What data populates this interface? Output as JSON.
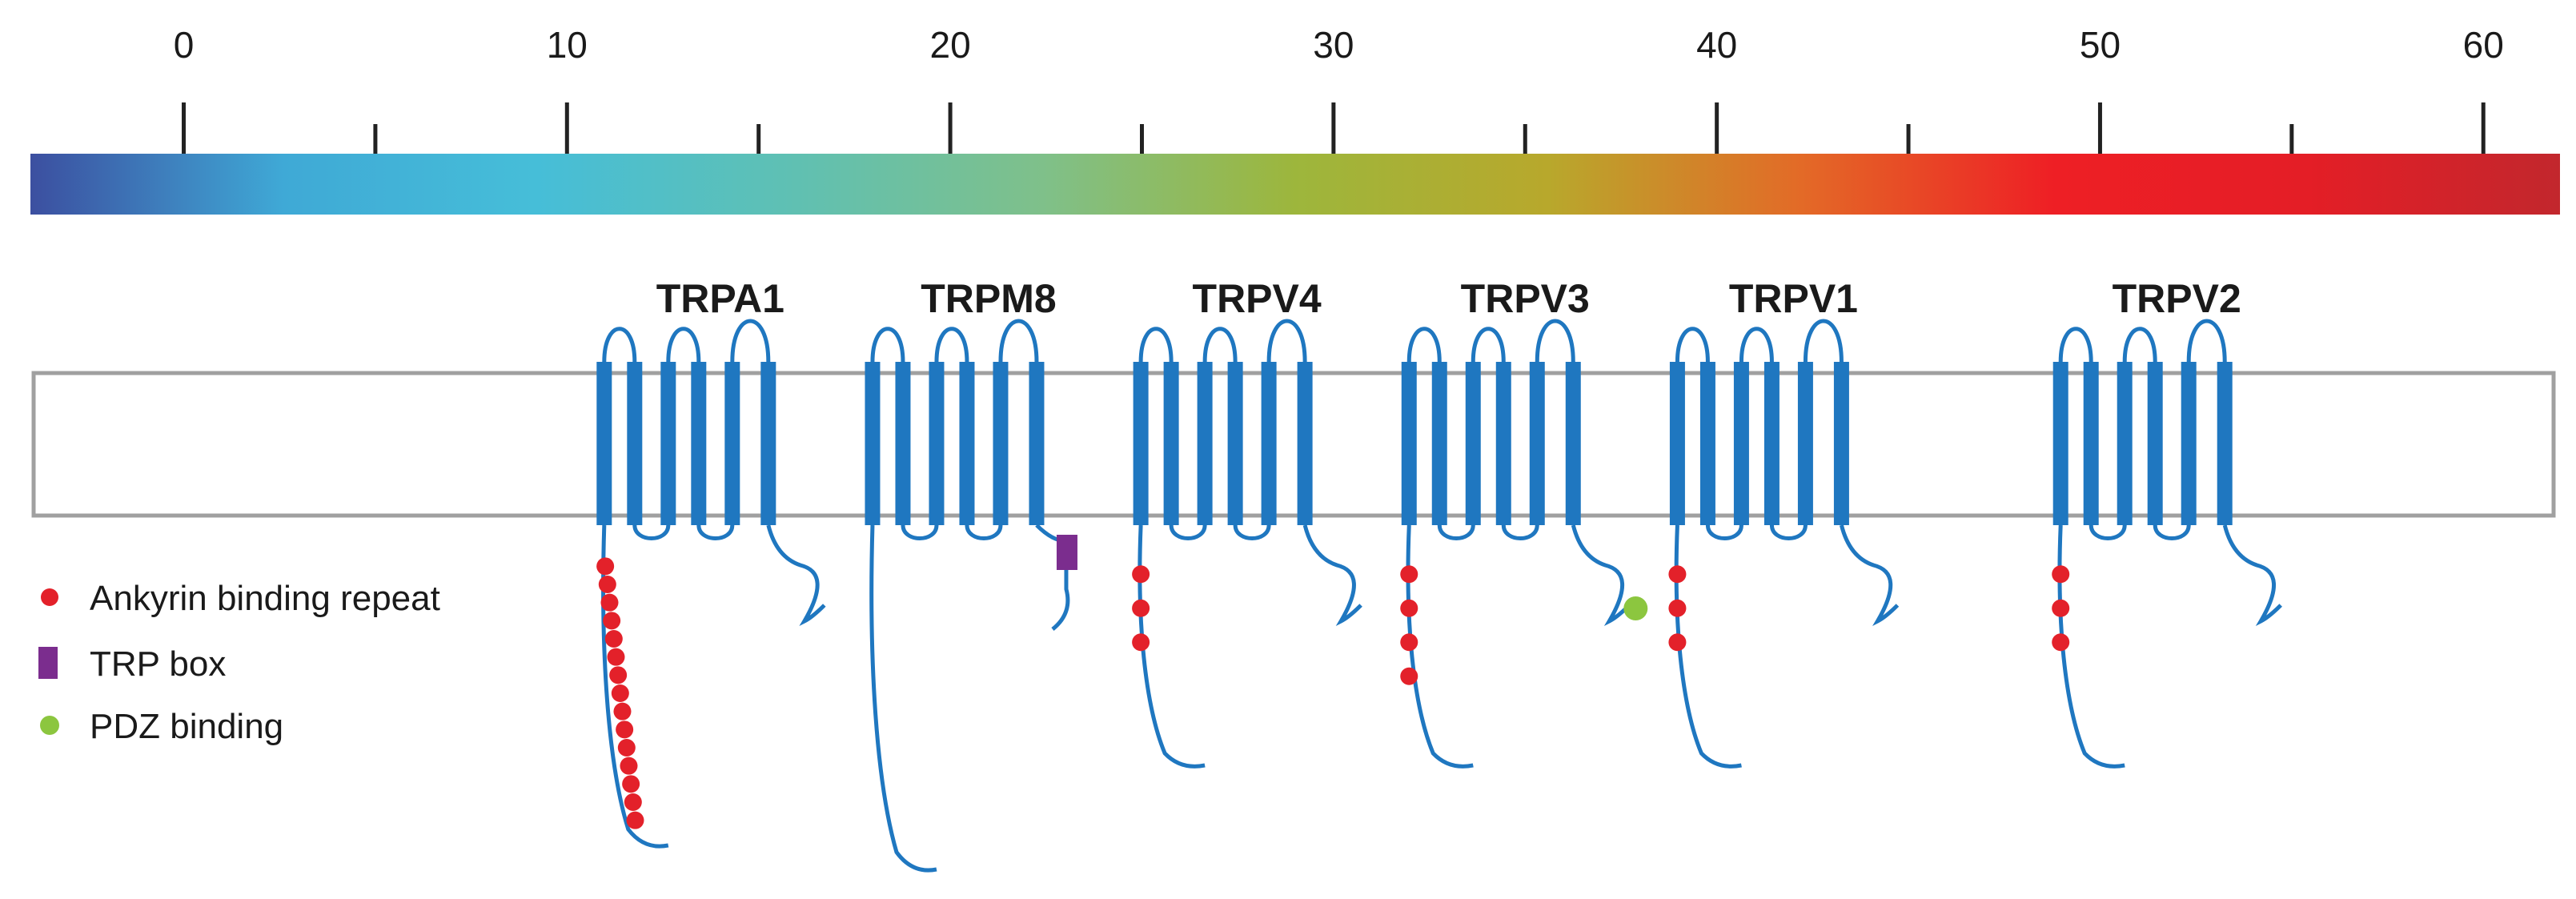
{
  "scale": {
    "ticks": [
      "0",
      "10",
      "20",
      "30",
      "40",
      "50",
      "60"
    ],
    "minor_ticks": [
      5,
      15,
      25,
      35,
      45,
      55
    ],
    "range": [
      -4,
      62
    ],
    "gradient_colors": [
      "#3c4fa0",
      "#3fa9d6",
      "#46bed8",
      "#5fc0b3",
      "#7fc08a",
      "#9db63c",
      "#b8a82c",
      "#e36a27",
      "#ee1f25",
      "#e41e26",
      "#c2272d"
    ]
  },
  "channels": [
    {
      "name": "TRPA1",
      "temperature": 14,
      "ankyrin_repeats": 15,
      "trp_box": false,
      "pdz": false
    },
    {
      "name": "TRPM8",
      "temperature": 21,
      "ankyrin_repeats": 0,
      "trp_box": true,
      "pdz": false
    },
    {
      "name": "TRPV4",
      "temperature": 28,
      "ankyrin_repeats": 3,
      "trp_box": false,
      "pdz": false
    },
    {
      "name": "TRPV3",
      "temperature": 35,
      "ankyrin_repeats": 4,
      "trp_box": false,
      "pdz": true
    },
    {
      "name": "TRPV1",
      "temperature": 42,
      "ankyrin_repeats": 3,
      "trp_box": false,
      "pdz": false
    },
    {
      "name": "TRPV2",
      "temperature": 52,
      "ankyrin_repeats": 3,
      "trp_box": false,
      "pdz": false
    }
  ],
  "legend": {
    "ankyrin": "Ankyrin binding repeat",
    "trp_box": "TRP box",
    "pdz": "PDZ binding"
  },
  "colors": {
    "channel": "#1f77c0",
    "ankyrin": "#e3212a",
    "trp_box": "#7b2d8e",
    "pdz": "#8cc63f",
    "membrane_border": "#a0a0a0"
  }
}
